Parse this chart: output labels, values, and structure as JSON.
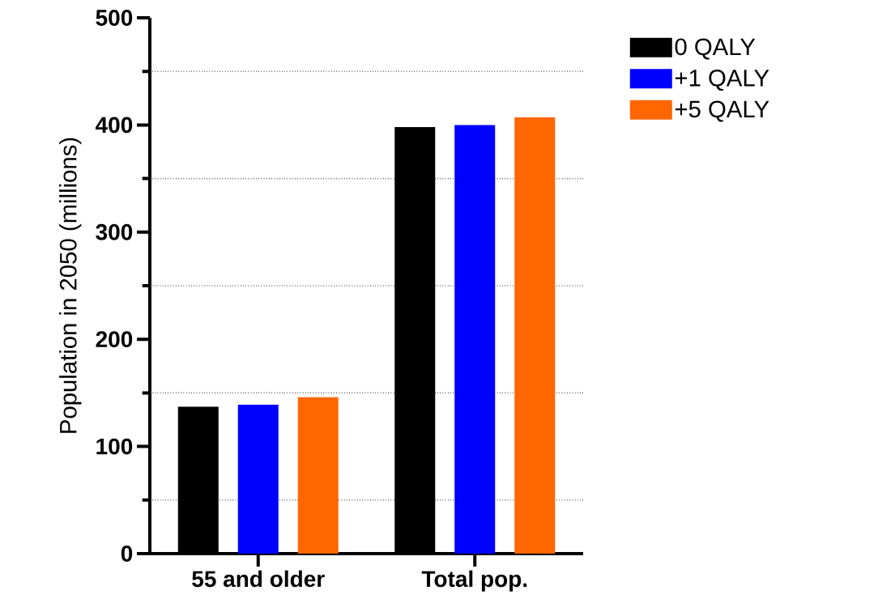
{
  "chart_data": {
    "type": "bar",
    "ylabel": "Population in 2050 (millions)",
    "categories": [
      "55 and older",
      "Total pop."
    ],
    "series": [
      {
        "name": "0 QALY",
        "color": "#000000",
        "values": [
          137,
          398
        ]
      },
      {
        "name": "+1 QALY",
        "color": "#0000ff",
        "values": [
          139,
          400
        ]
      },
      {
        "name": "+5 QALY",
        "color": "#ff6600",
        "values": [
          146,
          407
        ]
      }
    ],
    "ylim": [
      0,
      500
    ],
    "yticks": [
      0,
      {
        "value": 50,
        "label": null
      },
      100,
      {
        "value": 150,
        "label": null
      },
      200,
      {
        "value": 250,
        "label": null
      },
      300,
      {
        "value": 350,
        "label": null
      },
      400,
      {
        "value": 450,
        "label": null
      },
      500
    ],
    "grid": "y",
    "legend": "top right"
  }
}
